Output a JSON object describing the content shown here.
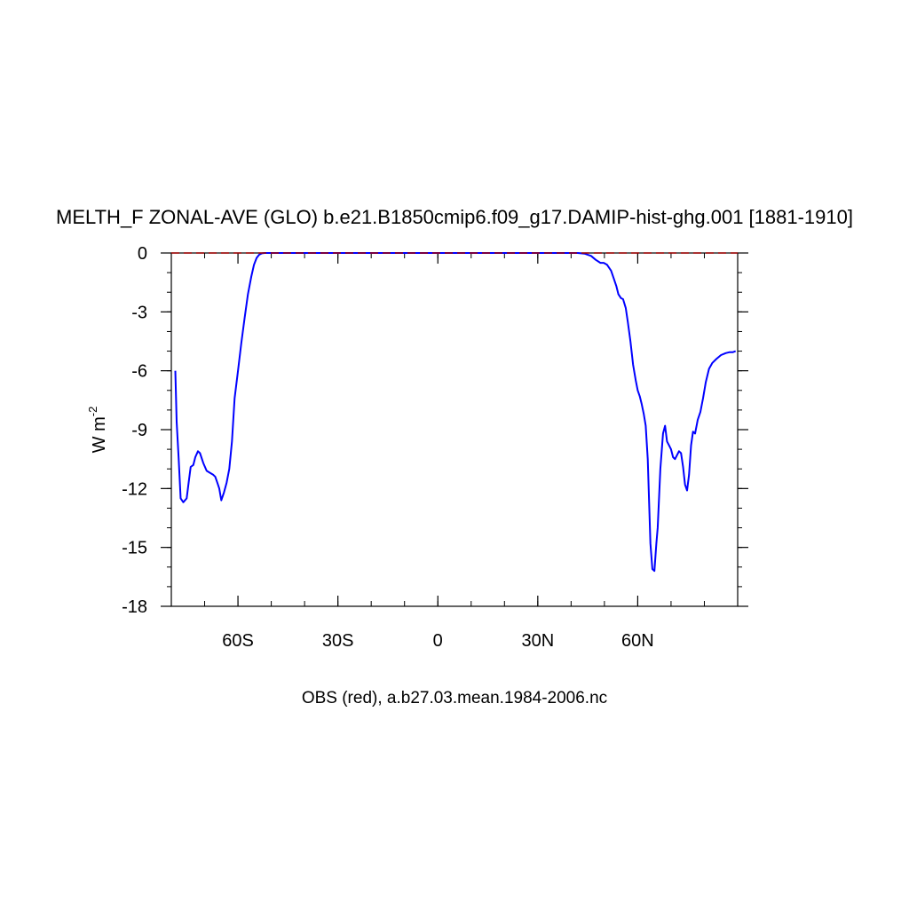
{
  "chart_data": {
    "type": "line",
    "title": "MELTH_F ZONAL-AVE (GLO) b.e21.B1850cmip6.f09_g17.DAMIP-hist-ghg.001 [1881-1910]",
    "ylabel_main": "W m",
    "ylabel_sup": "-2",
    "xlabel": "OBS (red), a.b27.03.mean.1984-2006.nc",
    "xlim": [
      -80,
      90
    ],
    "ylim": [
      -18,
      0
    ],
    "x_ticks": [
      {
        "value": -60,
        "label": "60S"
      },
      {
        "value": -30,
        "label": "30S"
      },
      {
        "value": 0,
        "label": "0"
      },
      {
        "value": 30,
        "label": "30N"
      },
      {
        "value": 60,
        "label": "60N"
      }
    ],
    "y_ticks": [
      {
        "value": 0,
        "label": "0"
      },
      {
        "value": -3,
        "label": "-3"
      },
      {
        "value": -6,
        "label": "-6"
      },
      {
        "value": -9,
        "label": "-9"
      },
      {
        "value": -12,
        "label": "-12"
      },
      {
        "value": -15,
        "label": "-15"
      },
      {
        "value": -18,
        "label": "-18"
      }
    ],
    "colors": {
      "model": "#0000ff",
      "obs": "#a00000"
    },
    "series": [
      {
        "color": "#0000ff",
        "x": [
          -78.8,
          -78.4,
          -77.8,
          -77.2,
          -76.4,
          -75.4,
          -74.8,
          -74.2,
          -73.4,
          -72.8,
          -72.0,
          -71.4,
          -70.4,
          -69.4,
          -68.4,
          -67.4,
          -66.8,
          -66.2,
          -65.6,
          -65.0,
          -64.2,
          -63.4,
          -62.6,
          -61.8,
          -61.0,
          -60.0,
          -59.0,
          -58.0,
          -57.0,
          -56.0,
          -55.2,
          -54.4,
          -53.6,
          -52.8,
          -52.0,
          -51.0,
          -50.0,
          -48.0,
          -45.0,
          0.0,
          42.0,
          44.0,
          46.0,
          47.4,
          48.8,
          49.8,
          50.8,
          52.0,
          52.8,
          53.6,
          54.2,
          55.0,
          55.6,
          56.4,
          57.0,
          57.8,
          58.6,
          59.4,
          60.0,
          60.6,
          61.2,
          61.8,
          62.4,
          63.0,
          63.8,
          64.4,
          65.0,
          65.6,
          66.0,
          66.8,
          67.6,
          68.2,
          68.8,
          69.4,
          70.0,
          70.6,
          71.2,
          71.8,
          72.4,
          73.0,
          73.6,
          74.2,
          74.8,
          75.4,
          76.0,
          76.6,
          77.2,
          78.0,
          78.8,
          79.6,
          80.4,
          81.4,
          82.4,
          83.6,
          85.0,
          86.4,
          87.6,
          88.6,
          89.4
        ],
        "y": [
          -6.0,
          -8.6,
          -10.5,
          -12.5,
          -12.7,
          -12.5,
          -11.7,
          -10.9,
          -10.8,
          -10.4,
          -10.1,
          -10.2,
          -10.7,
          -11.1,
          -11.2,
          -11.3,
          -11.4,
          -11.7,
          -12.0,
          -12.6,
          -12.2,
          -11.7,
          -11.0,
          -9.6,
          -7.4,
          -6.0,
          -4.6,
          -3.3,
          -2.1,
          -1.2,
          -0.6,
          -0.25,
          -0.08,
          -0.02,
          0.0,
          0.0,
          0.0,
          0.0,
          0.0,
          0.0,
          0.0,
          -0.03,
          -0.15,
          -0.35,
          -0.5,
          -0.5,
          -0.6,
          -0.9,
          -1.3,
          -1.7,
          -2.1,
          -2.3,
          -2.35,
          -2.8,
          -3.5,
          -4.5,
          -5.7,
          -6.5,
          -7.0,
          -7.3,
          -7.7,
          -8.2,
          -8.8,
          -10.5,
          -14.8,
          -16.1,
          -16.2,
          -14.8,
          -14.0,
          -11.0,
          -9.2,
          -8.8,
          -9.6,
          -9.8,
          -10.0,
          -10.4,
          -10.5,
          -10.3,
          -10.1,
          -10.2,
          -10.9,
          -11.8,
          -12.1,
          -11.3,
          -9.8,
          -9.1,
          -9.2,
          -8.5,
          -8.1,
          -7.4,
          -6.6,
          -5.9,
          -5.6,
          -5.4,
          -5.2,
          -5.1,
          -5.05,
          -5.05,
          -5.0
        ]
      },
      {
        "color": "#a00000",
        "dashed": true,
        "x": [
          -80,
          90
        ],
        "y": [
          0.0,
          0.0
        ]
      }
    ]
  }
}
